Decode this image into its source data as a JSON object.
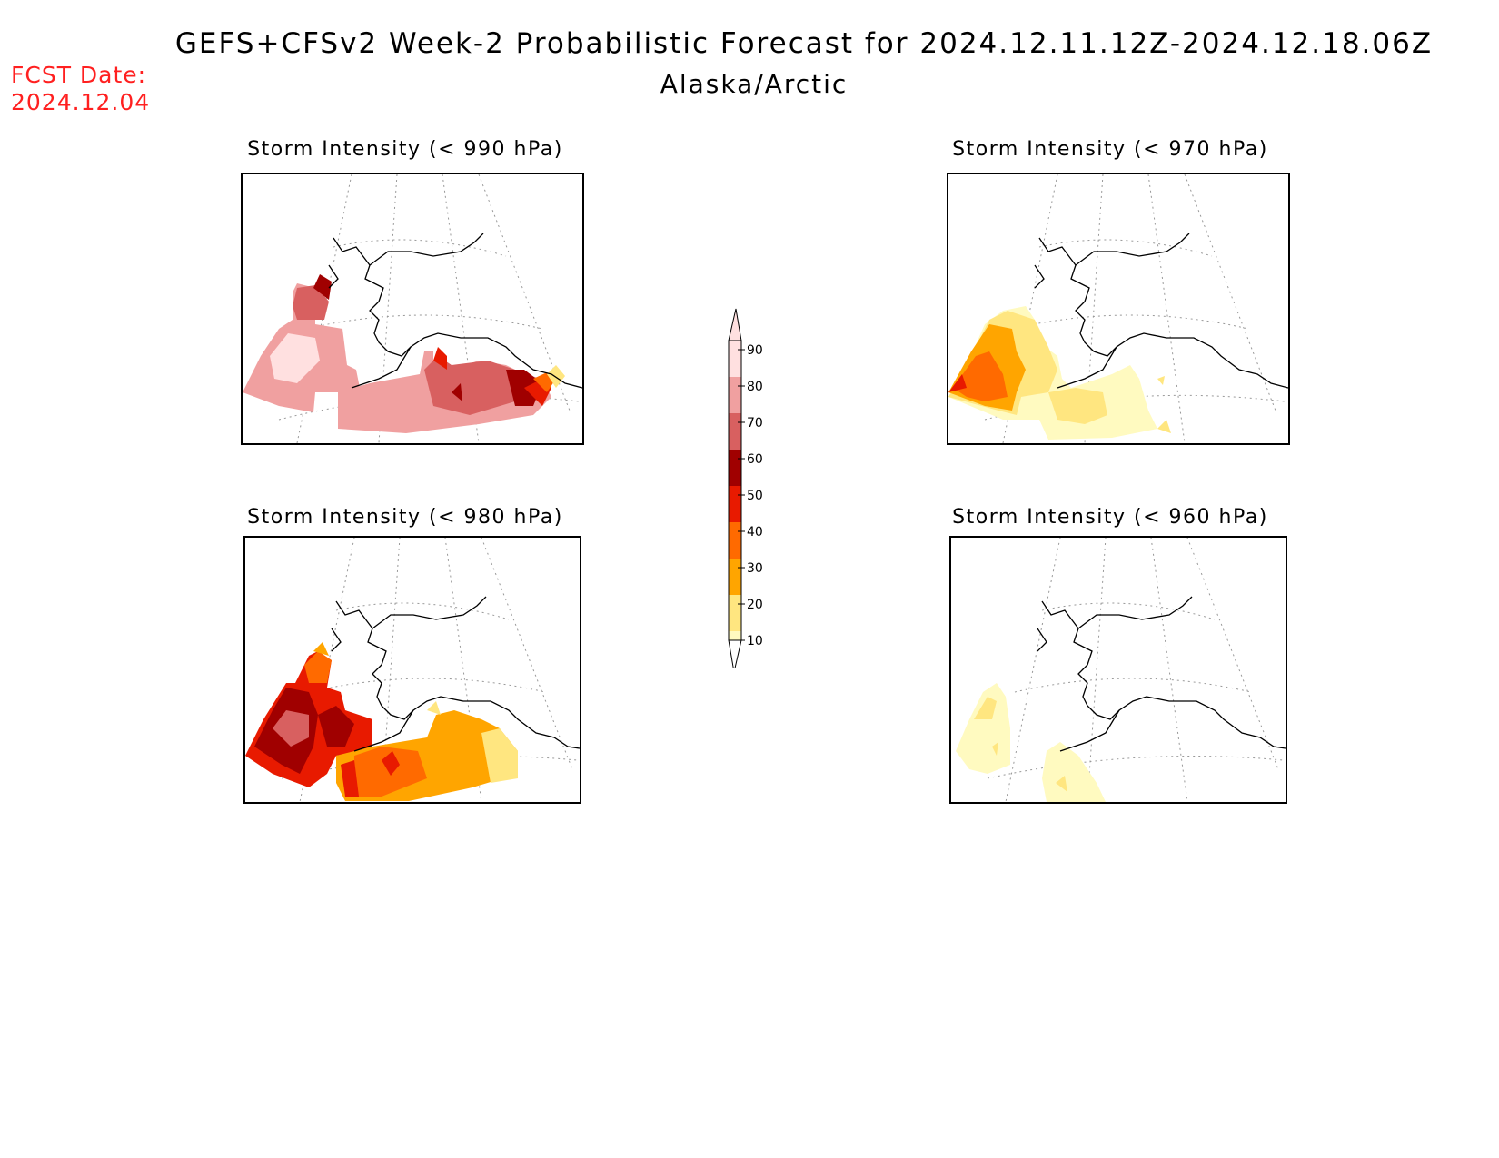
{
  "header": {
    "title": "GEFS+CFSv2 Week-2 Probabilistic Forecast for 2024.12.11.12Z-2024.12.18.06Z",
    "region": "Alaska/Arctic",
    "fcst_label": "FCST Date:",
    "fcst_date": "2024.12.04"
  },
  "panels": [
    {
      "id": "p990",
      "title": "Storm Intensity (< 990 hPa)"
    },
    {
      "id": "p970",
      "title": "Storm Intensity (< 970 hPa)"
    },
    {
      "id": "p980",
      "title": "Storm Intensity (< 980 hPa)"
    },
    {
      "id": "p960",
      "title": "Storm Intensity (< 960 hPa)"
    }
  ],
  "colorbar": {
    "levels": [
      "10",
      "20",
      "30",
      "40",
      "50",
      "60",
      "70",
      "80",
      "90"
    ],
    "colors": [
      "#fffac0",
      "#ffe680",
      "#ffa500",
      "#ff6a00",
      "#e81a00",
      "#a00000",
      "#d86060",
      "#f0a0a0",
      "#ffe0e0"
    ]
  },
  "colors": {
    "fcst_text": "#ff2020"
  }
}
